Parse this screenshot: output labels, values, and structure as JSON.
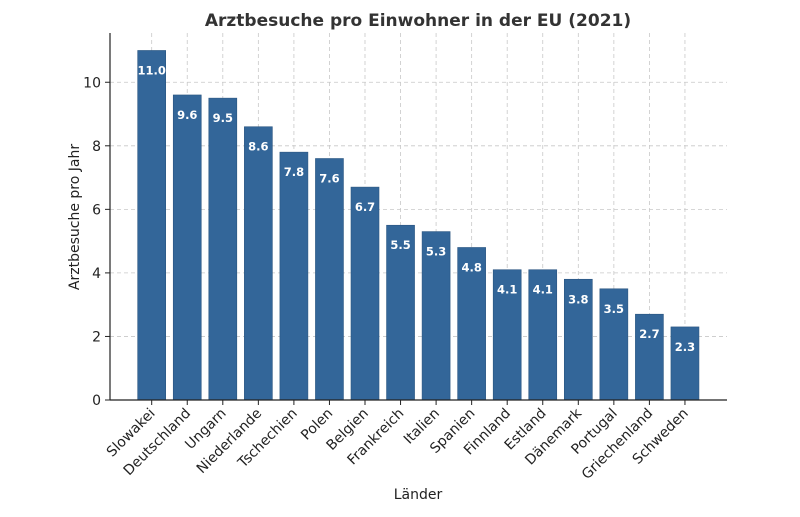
{
  "chart_data": {
    "type": "bar",
    "title": "Arztbesuche pro Einwohner in der EU (2021)",
    "xlabel": "Länder",
    "ylabel": "Arztbesuche pro Jahr",
    "categories": [
      "Slowakei",
      "Deutschland",
      "Ungarn",
      "Niederlande",
      "Tschechien",
      "Polen",
      "Belgien",
      "Frankreich",
      "Italien",
      "Spanien",
      "Finnland",
      "Estland",
      "Dänemark",
      "Portugal",
      "Griechenland",
      "Schweden"
    ],
    "values": [
      11.0,
      9.6,
      9.5,
      8.6,
      7.8,
      7.6,
      6.7,
      5.5,
      5.3,
      4.8,
      4.1,
      4.1,
      3.8,
      3.5,
      2.7,
      2.3
    ],
    "data_labels": [
      "11.0",
      "9.6",
      "9.5",
      "8.6",
      "7.8",
      "7.6",
      "6.7",
      "5.5",
      "5.3",
      "4.8",
      "4.1",
      "4.1",
      "3.8",
      "3.5",
      "2.7",
      "2.3"
    ],
    "yticks": [
      "0",
      "2",
      "4",
      "6",
      "8",
      "10"
    ],
    "ylim": [
      0,
      11.55
    ],
    "grid": true,
    "bar_color": "#336699",
    "label_color": "#ffffff"
  }
}
